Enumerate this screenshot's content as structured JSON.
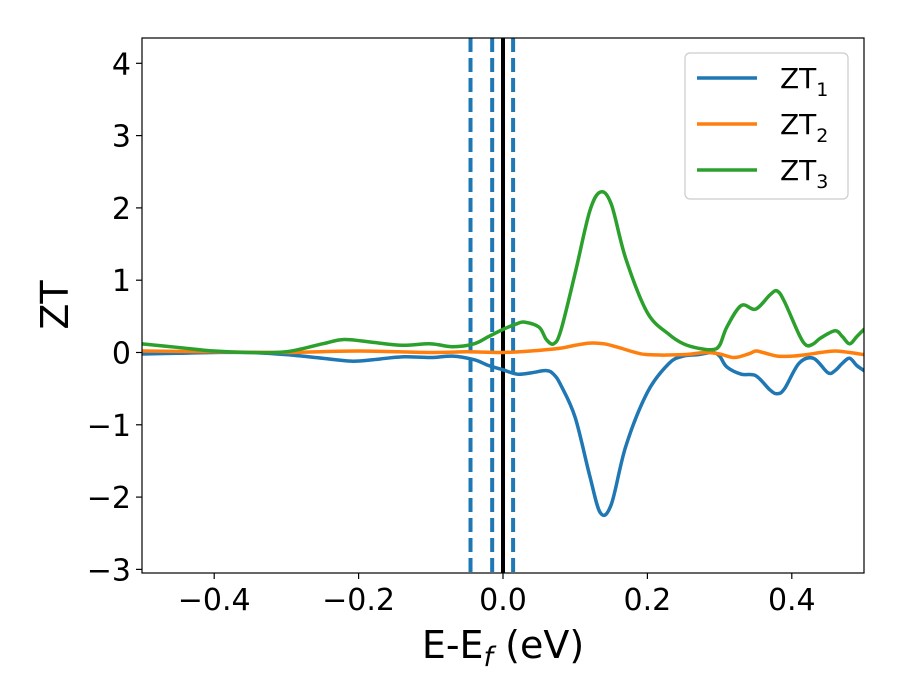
{
  "chart_data": {
    "type": "line",
    "xlabel": "E-E",
    "xlabel_sub": "f",
    "xlabel_unit": " (eV)",
    "ylabel": "ZT",
    "xlim": [
      -0.5,
      0.5
    ],
    "ylim": [
      -3.05,
      4.35
    ],
    "xticks": [
      -0.4,
      -0.2,
      0.0,
      0.2,
      0.4
    ],
    "xtick_labels": [
      "−0.4",
      "−0.2",
      "0.0",
      "0.2",
      "0.4"
    ],
    "yticks": [
      -3,
      -2,
      -1,
      0,
      1,
      2,
      3,
      4
    ],
    "ytick_labels": [
      "−3",
      "−2",
      "−1",
      "0",
      "1",
      "2",
      "3",
      "4"
    ],
    "grid": false,
    "legend_position": "top-right",
    "vlines": [
      {
        "x": -0.045,
        "style": "dashed",
        "color": "#1f77b4"
      },
      {
        "x": -0.015,
        "style": "dashed",
        "color": "#1f77b4"
      },
      {
        "x": 0.014,
        "style": "dashed",
        "color": "#1f77b4"
      },
      {
        "x": 0.0,
        "style": "solid",
        "color": "#000000"
      }
    ],
    "series": [
      {
        "name": "ZT",
        "sub": "1",
        "color": "#1f77b4",
        "x": [
          -0.5,
          -0.45,
          -0.4,
          -0.35,
          -0.3,
          -0.25,
          -0.21,
          -0.18,
          -0.14,
          -0.1,
          -0.07,
          -0.04,
          -0.02,
          0.0,
          0.02,
          0.04,
          0.06,
          0.07,
          0.08,
          0.1,
          0.12,
          0.135,
          0.15,
          0.17,
          0.2,
          0.23,
          0.25,
          0.27,
          0.29,
          0.3,
          0.31,
          0.33,
          0.35,
          0.37,
          0.38,
          0.39,
          0.41,
          0.43,
          0.45,
          0.46,
          0.47,
          0.48,
          0.49,
          0.5
        ],
        "y": [
          -0.02,
          -0.01,
          0.0,
          0.0,
          -0.03,
          -0.08,
          -0.12,
          -0.1,
          -0.06,
          -0.07,
          -0.05,
          -0.1,
          -0.18,
          -0.24,
          -0.3,
          -0.28,
          -0.25,
          -0.3,
          -0.45,
          -0.9,
          -1.7,
          -2.22,
          -2.1,
          -1.3,
          -0.55,
          -0.15,
          -0.05,
          -0.03,
          0.0,
          -0.05,
          -0.2,
          -0.3,
          -0.32,
          -0.52,
          -0.57,
          -0.5,
          -0.15,
          -0.08,
          -0.28,
          -0.25,
          -0.15,
          -0.08,
          -0.18,
          -0.25
        ]
      },
      {
        "name": "ZT",
        "sub": "2",
        "color": "#ff7f0e",
        "x": [
          -0.5,
          -0.4,
          -0.3,
          -0.2,
          -0.1,
          -0.05,
          0.0,
          0.05,
          0.08,
          0.1,
          0.12,
          0.14,
          0.16,
          0.18,
          0.2,
          0.25,
          0.28,
          0.3,
          0.32,
          0.34,
          0.35,
          0.36,
          0.38,
          0.4,
          0.42,
          0.44,
          0.46,
          0.48,
          0.5
        ],
        "y": [
          0.02,
          0.01,
          0.0,
          0.02,
          0.0,
          0.01,
          0.0,
          0.03,
          0.06,
          0.1,
          0.13,
          0.12,
          0.07,
          0.01,
          -0.03,
          -0.03,
          0.0,
          -0.02,
          -0.07,
          -0.02,
          0.02,
          0.0,
          -0.05,
          -0.05,
          -0.03,
          0.0,
          0.02,
          0.0,
          -0.03
        ]
      },
      {
        "name": "ZT",
        "sub": "3",
        "color": "#2ca02c",
        "x": [
          -0.5,
          -0.45,
          -0.4,
          -0.35,
          -0.3,
          -0.25,
          -0.22,
          -0.18,
          -0.14,
          -0.1,
          -0.07,
          -0.04,
          -0.02,
          0.0,
          0.02,
          0.03,
          0.05,
          0.06,
          0.07,
          0.08,
          0.1,
          0.12,
          0.135,
          0.15,
          0.17,
          0.2,
          0.23,
          0.25,
          0.27,
          0.29,
          0.3,
          0.31,
          0.33,
          0.35,
          0.37,
          0.38,
          0.39,
          0.41,
          0.42,
          0.43,
          0.44,
          0.46,
          0.47,
          0.48,
          0.49,
          0.5
        ],
        "y": [
          0.12,
          0.07,
          0.02,
          0.0,
          0.01,
          0.12,
          0.18,
          0.14,
          0.1,
          0.12,
          0.08,
          0.12,
          0.22,
          0.32,
          0.4,
          0.42,
          0.35,
          0.18,
          0.12,
          0.3,
          1.1,
          1.95,
          2.22,
          2.05,
          1.3,
          0.55,
          0.25,
          0.12,
          0.06,
          0.04,
          0.1,
          0.35,
          0.65,
          0.6,
          0.8,
          0.85,
          0.7,
          0.25,
          0.1,
          0.12,
          0.2,
          0.3,
          0.22,
          0.12,
          0.22,
          0.32
        ]
      }
    ]
  }
}
